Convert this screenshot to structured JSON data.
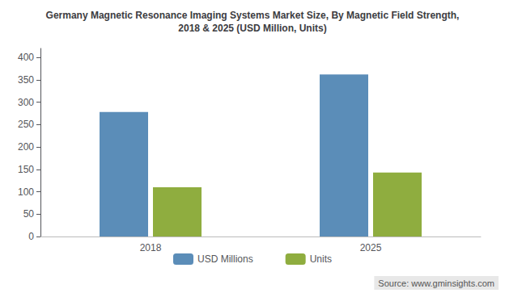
{
  "chart_data": {
    "type": "bar",
    "title": "Germany Magnetic Resonance Imaging Systems Market Size, By Magnetic Field Strength,\n2018 & 2025 (USD Million, Units)",
    "categories": [
      "2018",
      "2025"
    ],
    "series": [
      {
        "name": "USD Millions",
        "color": "#5b8db8",
        "values": [
          278,
          362
        ]
      },
      {
        "name": "Units",
        "color": "#8fad3f",
        "values": [
          110,
          143
        ]
      }
    ],
    "ylim": [
      0,
      420
    ],
    "yticks": [
      0,
      50,
      100,
      150,
      200,
      250,
      300,
      350,
      400
    ],
    "grid": false,
    "legend": "bottom",
    "annotations": [
      "Source: www.gminsights.com"
    ]
  }
}
